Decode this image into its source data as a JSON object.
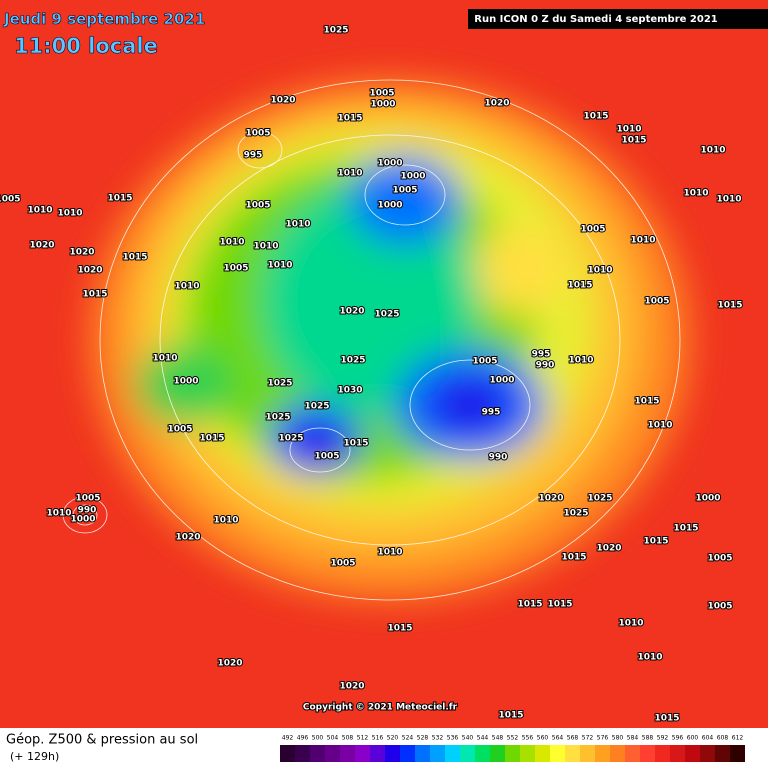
{
  "header": {
    "date": "Jeudi 9 septembre 2021",
    "time": "11:00 locale",
    "run": "Run ICON 0 Z du Samedi 4 septembre 2021"
  },
  "copyright": "Copyright © 2021 Meteociel.fr",
  "legend": {
    "title": "Géop. Z500 & pression au sol",
    "lead": "(+ 129h)",
    "ticks": [
      492,
      496,
      500,
      504,
      508,
      512,
      516,
      520,
      524,
      528,
      532,
      536,
      540,
      544,
      548,
      552,
      556,
      560,
      564,
      568,
      572,
      576,
      580,
      584,
      588,
      592,
      596,
      600,
      604,
      608,
      612
    ],
    "colors": [
      "#2a0030",
      "#3a0050",
      "#500070",
      "#66008a",
      "#7a00a6",
      "#8a00c8",
      "#5a00d8",
      "#2000e8",
      "#0030ff",
      "#0070ff",
      "#00a0ff",
      "#00d0ff",
      "#00e8b0",
      "#00e060",
      "#20d020",
      "#70d800",
      "#a8e000",
      "#d8e800",
      "#ffff30",
      "#ffe040",
      "#ffc030",
      "#ffa020",
      "#ff8020",
      "#ff6030",
      "#ff4030",
      "#f02820",
      "#d81818",
      "#c00810",
      "#900808",
      "#600404",
      "#300000"
    ]
  },
  "pressure_labels": [
    "1025",
    "1020",
    "1005",
    "1000",
    "1020",
    "1015",
    "1015",
    "1010",
    "1015",
    "1005",
    "995",
    "1010",
    "1000",
    "1000",
    "1010",
    "1005",
    "1000",
    "1005",
    "1010",
    "1010",
    "1015",
    "1005",
    "1010",
    "1005",
    "1010",
    "1010",
    "1010",
    "1020",
    "1010",
    "1010",
    "1015",
    "1005",
    "1010",
    "1010",
    "1020",
    "1020",
    "1015",
    "1010",
    "1020",
    "1025",
    "1015",
    "1005",
    "1015",
    "1010",
    "1000",
    "1025",
    "1025",
    "1030",
    "995",
    "990",
    "1005",
    "1010",
    "1000",
    "995",
    "1025",
    "1025",
    "1015",
    "1025",
    "1005",
    "990",
    "1005",
    "1015",
    "1015",
    "1010",
    "1005",
    "990",
    "1000",
    "1010",
    "1010",
    "1020",
    "1025",
    "1025",
    "1020",
    "1010",
    "1005",
    "1015",
    "1020",
    "1015",
    "1015",
    "1015",
    "1015",
    "1015",
    "1010",
    "1020",
    "1020",
    "1015",
    "1015",
    "1005",
    "1005",
    "1000",
    "1010"
  ]
}
